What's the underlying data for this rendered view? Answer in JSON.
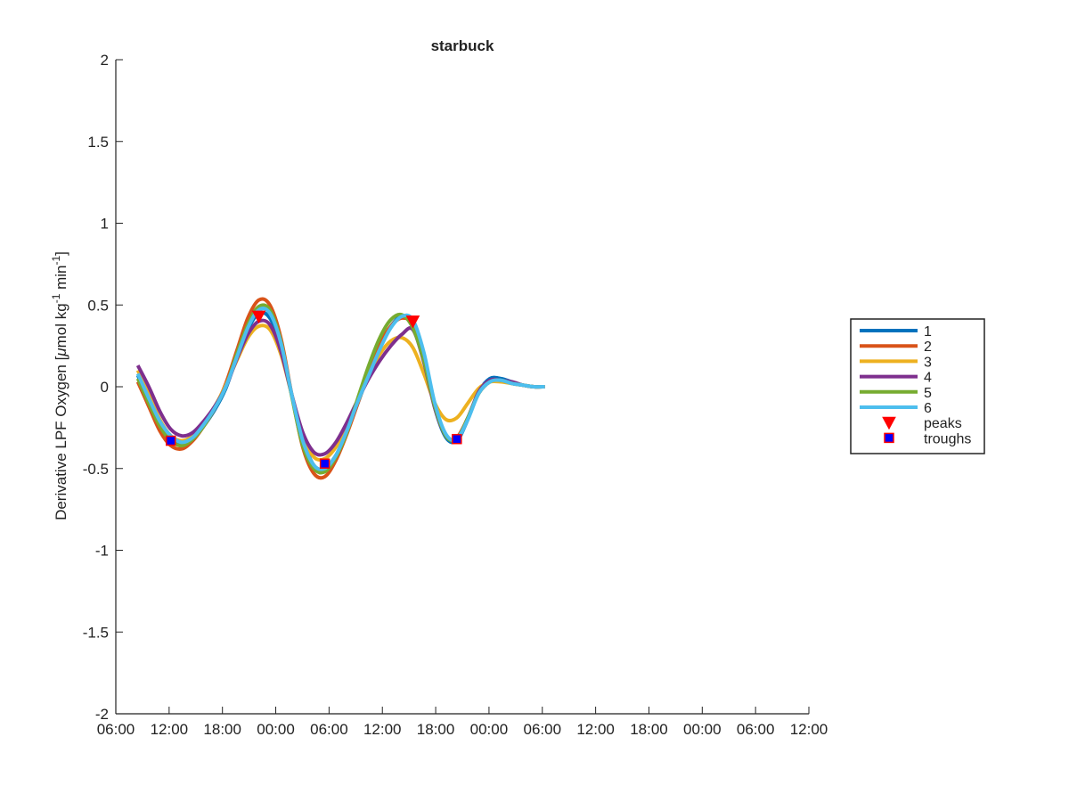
{
  "chart_data": {
    "type": "line",
    "title": "starbuck",
    "xlabel": "",
    "ylabel": {
      "prefix": "Derivative LPF Oxygen [",
      "mu": "μ",
      "unit1": "mol kg",
      "exp1": "-1",
      "unit2": " min",
      "exp2": "-1",
      "suffix": "]"
    },
    "xlim_hours": [
      0,
      126
    ],
    "ylim": [
      -2,
      2
    ],
    "x_tick_labels": [
      "06:00",
      "12:00",
      "18:00",
      "00:00",
      "06:00",
      "12:00",
      "18:00",
      "00:00",
      "06:00",
      "12:00",
      "18:00",
      "00:00",
      "06:00",
      "12:00"
    ],
    "y_ticks": [
      -2,
      -1.5,
      -1,
      -0.5,
      0,
      0.5,
      1,
      1.5,
      2
    ],
    "y_tick_labels": [
      "-2",
      "-1.5",
      "-1",
      "-0.5",
      "0",
      "0.5",
      "1",
      "1.5",
      "2"
    ],
    "grid": false,
    "legend_position": "right",
    "series": [
      {
        "name": "1",
        "color": "#0072BD",
        "points": [
          [
            4,
            0.07
          ],
          [
            6,
            -0.08
          ],
          [
            8,
            -0.22
          ],
          [
            10,
            -0.31
          ],
          [
            12,
            -0.35
          ],
          [
            14,
            -0.32
          ],
          [
            16,
            -0.24
          ],
          [
            18,
            -0.14
          ],
          [
            20,
            -0.01
          ],
          [
            22,
            0.18
          ],
          [
            24,
            0.35
          ],
          [
            26,
            0.45
          ],
          [
            28,
            0.42
          ],
          [
            30,
            0.25
          ],
          [
            32,
            -0.05
          ],
          [
            34,
            -0.32
          ],
          [
            36,
            -0.48
          ],
          [
            38,
            -0.5
          ],
          [
            40,
            -0.42
          ],
          [
            42,
            -0.28
          ],
          [
            44,
            -0.1
          ],
          [
            46,
            0.08
          ],
          [
            48,
            0.25
          ],
          [
            50,
            0.37
          ],
          [
            52,
            0.43
          ],
          [
            54,
            0.38
          ],
          [
            56,
            0.17
          ],
          [
            58,
            -0.13
          ],
          [
            60,
            -0.31
          ],
          [
            62,
            -0.33
          ],
          [
            64,
            -0.2
          ],
          [
            66,
            -0.03
          ],
          [
            68,
            0.05
          ],
          [
            70,
            0.05
          ],
          [
            72,
            0.03
          ],
          [
            74,
            0.01
          ],
          [
            76,
            0.0
          ],
          [
            78,
            0.0
          ]
        ]
      },
      {
        "name": "2",
        "color": "#D95319",
        "points": [
          [
            4,
            0.03
          ],
          [
            6,
            -0.12
          ],
          [
            8,
            -0.27
          ],
          [
            10,
            -0.36
          ],
          [
            12,
            -0.38
          ],
          [
            14,
            -0.33
          ],
          [
            16,
            -0.24
          ],
          [
            18,
            -0.13
          ],
          [
            20,
            0.02
          ],
          [
            22,
            0.22
          ],
          [
            24,
            0.42
          ],
          [
            26,
            0.53
          ],
          [
            28,
            0.5
          ],
          [
            30,
            0.3
          ],
          [
            32,
            -0.05
          ],
          [
            34,
            -0.37
          ],
          [
            36,
            -0.53
          ],
          [
            38,
            -0.55
          ],
          [
            40,
            -0.45
          ],
          [
            42,
            -0.29
          ],
          [
            44,
            -0.1
          ],
          [
            46,
            0.09
          ],
          [
            48,
            0.26
          ],
          [
            50,
            0.37
          ],
          [
            52,
            0.42
          ],
          [
            54,
            0.38
          ],
          [
            56,
            0.18
          ],
          [
            58,
            -0.12
          ],
          [
            60,
            -0.3
          ],
          [
            62,
            -0.31
          ],
          [
            64,
            -0.19
          ],
          [
            66,
            -0.04
          ],
          [
            68,
            0.03
          ],
          [
            70,
            0.04
          ],
          [
            72,
            0.02
          ],
          [
            74,
            0.01
          ],
          [
            76,
            0.0
          ],
          [
            78,
            0.0
          ]
        ]
      },
      {
        "name": "3",
        "color": "#EDB120",
        "points": [
          [
            4,
            0.1
          ],
          [
            6,
            -0.05
          ],
          [
            8,
            -0.2
          ],
          [
            10,
            -0.3
          ],
          [
            12,
            -0.33
          ],
          [
            14,
            -0.3
          ],
          [
            16,
            -0.22
          ],
          [
            18,
            -0.12
          ],
          [
            20,
            0.01
          ],
          [
            22,
            0.16
          ],
          [
            24,
            0.3
          ],
          [
            26,
            0.37
          ],
          [
            28,
            0.35
          ],
          [
            30,
            0.2
          ],
          [
            32,
            -0.05
          ],
          [
            34,
            -0.3
          ],
          [
            36,
            -0.43
          ],
          [
            38,
            -0.44
          ],
          [
            40,
            -0.37
          ],
          [
            42,
            -0.25
          ],
          [
            44,
            -0.09
          ],
          [
            46,
            0.07
          ],
          [
            48,
            0.2
          ],
          [
            50,
            0.28
          ],
          [
            52,
            0.3
          ],
          [
            54,
            0.24
          ],
          [
            56,
            0.08
          ],
          [
            58,
            -0.1
          ],
          [
            60,
            -0.2
          ],
          [
            62,
            -0.19
          ],
          [
            64,
            -0.1
          ],
          [
            66,
            -0.01
          ],
          [
            68,
            0.03
          ],
          [
            70,
            0.03
          ],
          [
            72,
            0.02
          ],
          [
            74,
            0.01
          ],
          [
            76,
            0.0
          ],
          [
            78,
            0.0
          ]
        ]
      },
      {
        "name": "4",
        "color": "#7E2F8E",
        "points": [
          [
            4,
            0.13
          ],
          [
            6,
            0.0
          ],
          [
            8,
            -0.15
          ],
          [
            10,
            -0.26
          ],
          [
            12,
            -0.3
          ],
          [
            14,
            -0.28
          ],
          [
            16,
            -0.21
          ],
          [
            18,
            -0.12
          ],
          [
            20,
            0.0
          ],
          [
            22,
            0.17
          ],
          [
            24,
            0.32
          ],
          [
            26,
            0.4
          ],
          [
            28,
            0.38
          ],
          [
            30,
            0.22
          ],
          [
            32,
            -0.05
          ],
          [
            34,
            -0.28
          ],
          [
            36,
            -0.4
          ],
          [
            38,
            -0.41
          ],
          [
            40,
            -0.34
          ],
          [
            42,
            -0.22
          ],
          [
            44,
            -0.08
          ],
          [
            46,
            0.05
          ],
          [
            48,
            0.16
          ],
          [
            50,
            0.25
          ],
          [
            52,
            0.32
          ],
          [
            54,
            0.35
          ],
          [
            56,
            0.15
          ],
          [
            58,
            -0.13
          ],
          [
            60,
            -0.3
          ],
          [
            62,
            -0.32
          ],
          [
            64,
            -0.19
          ],
          [
            66,
            -0.03
          ],
          [
            68,
            0.04
          ],
          [
            70,
            0.04
          ],
          [
            72,
            0.03
          ],
          [
            74,
            0.01
          ],
          [
            76,
            0.0
          ],
          [
            78,
            0.0
          ]
        ]
      },
      {
        "name": "5",
        "color": "#77AC30",
        "points": [
          [
            4,
            0.05
          ],
          [
            6,
            -0.1
          ],
          [
            8,
            -0.24
          ],
          [
            10,
            -0.33
          ],
          [
            12,
            -0.36
          ],
          [
            14,
            -0.32
          ],
          [
            16,
            -0.24
          ],
          [
            18,
            -0.13
          ],
          [
            20,
            0.0
          ],
          [
            22,
            0.2
          ],
          [
            24,
            0.38
          ],
          [
            26,
            0.49
          ],
          [
            28,
            0.47
          ],
          [
            30,
            0.28
          ],
          [
            32,
            -0.06
          ],
          [
            34,
            -0.36
          ],
          [
            36,
            -0.5
          ],
          [
            38,
            -0.52
          ],
          [
            40,
            -0.43
          ],
          [
            42,
            -0.28
          ],
          [
            44,
            -0.07
          ],
          [
            46,
            0.13
          ],
          [
            48,
            0.3
          ],
          [
            50,
            0.41
          ],
          [
            52,
            0.44
          ],
          [
            54,
            0.36
          ],
          [
            56,
            0.16
          ],
          [
            58,
            -0.12
          ],
          [
            60,
            -0.3
          ],
          [
            62,
            -0.32
          ],
          [
            64,
            -0.19
          ],
          [
            66,
            -0.04
          ],
          [
            68,
            0.03
          ],
          [
            70,
            0.04
          ],
          [
            72,
            0.02
          ],
          [
            74,
            0.01
          ],
          [
            76,
            0.0
          ],
          [
            78,
            0.0
          ]
        ]
      },
      {
        "name": "6",
        "color": "#4DBEEE",
        "points": [
          [
            4,
            0.08
          ],
          [
            6,
            -0.07
          ],
          [
            8,
            -0.21
          ],
          [
            10,
            -0.3
          ],
          [
            12,
            -0.34
          ],
          [
            14,
            -0.31
          ],
          [
            16,
            -0.23
          ],
          [
            18,
            -0.13
          ],
          [
            20,
            0.0
          ],
          [
            22,
            0.18
          ],
          [
            24,
            0.36
          ],
          [
            26,
            0.47
          ],
          [
            28,
            0.45
          ],
          [
            30,
            0.27
          ],
          [
            32,
            -0.05
          ],
          [
            34,
            -0.33
          ],
          [
            36,
            -0.48
          ],
          [
            38,
            -0.5
          ],
          [
            40,
            -0.42
          ],
          [
            42,
            -0.27
          ],
          [
            44,
            -0.09
          ],
          [
            46,
            0.07
          ],
          [
            48,
            0.23
          ],
          [
            50,
            0.36
          ],
          [
            52,
            0.43
          ],
          [
            54,
            0.41
          ],
          [
            56,
            0.21
          ],
          [
            58,
            -0.1
          ],
          [
            60,
            -0.29
          ],
          [
            62,
            -0.32
          ],
          [
            64,
            -0.2
          ],
          [
            66,
            -0.04
          ],
          [
            68,
            0.03
          ],
          [
            70,
            0.04
          ],
          [
            72,
            0.02
          ],
          [
            74,
            0.01
          ],
          [
            76,
            0.0
          ],
          [
            78,
            0.0
          ]
        ]
      }
    ],
    "peaks": {
      "name": "peaks",
      "color": "#ff0000",
      "points": [
        [
          26,
          0.43
        ],
        [
          54,
          0.4
        ]
      ]
    },
    "troughs": {
      "name": "troughs",
      "color": "#0000ff",
      "edge_color": "#ff0000",
      "points": [
        [
          10,
          -0.33
        ],
        [
          38,
          -0.47
        ],
        [
          62,
          -0.32
        ]
      ]
    }
  }
}
